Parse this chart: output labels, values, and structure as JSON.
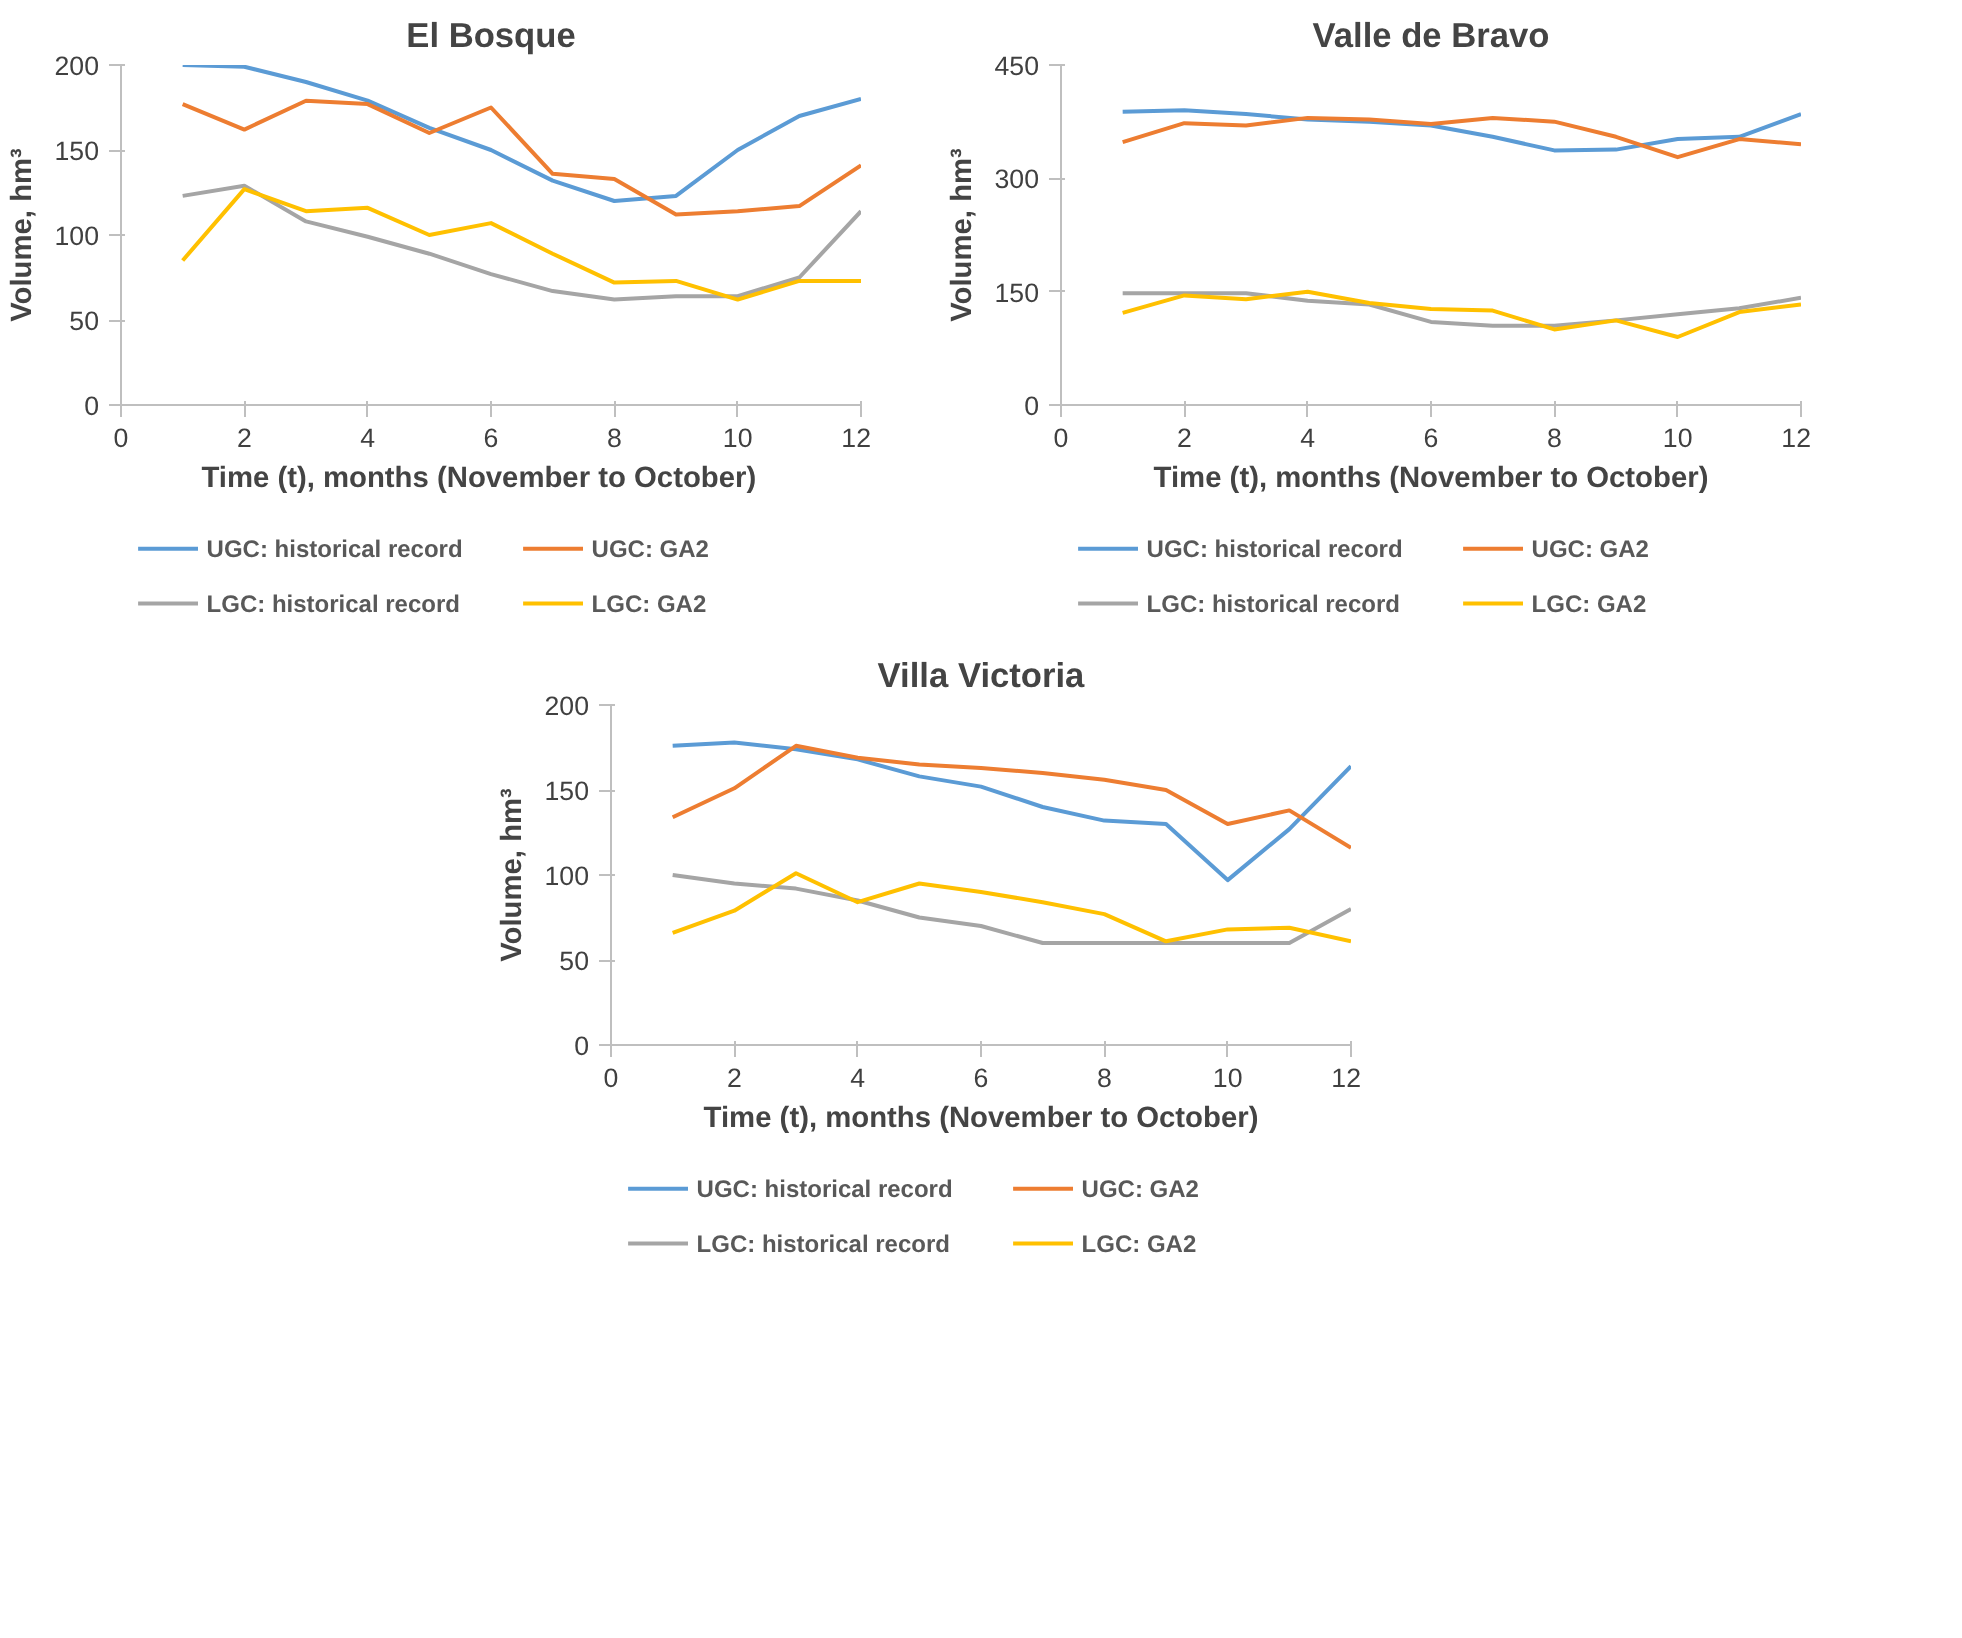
{
  "chart_data": [
    {
      "type": "line",
      "title": "El Bosque",
      "xlabel": "Time (t), months    (November to October)",
      "ylabel": "Volume, hm³",
      "x": [
        1,
        2,
        3,
        4,
        5,
        6,
        7,
        8,
        9,
        10,
        11,
        12
      ],
      "xlim": [
        0,
        12
      ],
      "xticks": [
        0,
        2,
        4,
        6,
        8,
        10,
        12
      ],
      "ylim": [
        0,
        200
      ],
      "yticks": [
        0,
        50,
        100,
        150,
        200
      ],
      "grid": false,
      "legend": "bottom",
      "marker": "none",
      "line_style": "solid",
      "series": [
        {
          "name": "UGC: historical record",
          "color": "#5b9bd5",
          "values": [
            200,
            199,
            190,
            179,
            163,
            150,
            132,
            120,
            123,
            150,
            170,
            180
          ]
        },
        {
          "name": "UGC: GA2",
          "color": "#ed7d31",
          "values": [
            177,
            162,
            179,
            177,
            160,
            175,
            136,
            133,
            112,
            114,
            117,
            141
          ]
        },
        {
          "name": "LGC: historical record",
          "color": "#a5a5a5",
          "values": [
            123,
            129,
            108,
            99,
            89,
            77,
            67,
            62,
            64,
            64,
            75,
            114
          ]
        },
        {
          "name": "LGC: GA2",
          "color": "#ffc000",
          "values": [
            85,
            127,
            114,
            116,
            100,
            107,
            89,
            72,
            73,
            62,
            73,
            73
          ]
        }
      ]
    },
    {
      "type": "line",
      "title": "Valle de Bravo",
      "xlabel": "Time (t), months (November to October)",
      "ylabel": "Volume, hm³",
      "x": [
        1,
        2,
        3,
        4,
        5,
        6,
        7,
        8,
        9,
        10,
        11,
        12
      ],
      "xlim": [
        0,
        12
      ],
      "xticks": [
        0,
        2,
        4,
        6,
        8,
        10,
        12
      ],
      "ylim": [
        0,
        450
      ],
      "yticks": [
        0,
        150,
        300,
        450
      ],
      "grid": false,
      "legend": "bottom",
      "marker": "none",
      "line_style": "solid",
      "series": [
        {
          "name": "UGC: historical record",
          "color": "#5b9bd5",
          "values": [
            388,
            390,
            385,
            378,
            375,
            370,
            355,
            337,
            338,
            352,
            355,
            385
          ]
        },
        {
          "name": "UGC: GA2",
          "color": "#ed7d31",
          "values": [
            348,
            373,
            370,
            380,
            378,
            372,
            380,
            375,
            355,
            328,
            352,
            345
          ]
        },
        {
          "name": "LGC: historical record",
          "color": "#a5a5a5",
          "values": [
            148,
            148,
            148,
            138,
            133,
            110,
            105,
            105,
            112,
            120,
            128,
            142
          ]
        },
        {
          "name": "LGC: GA2",
          "color": "#ffc000",
          "values": [
            122,
            145,
            140,
            150,
            135,
            127,
            125,
            100,
            112,
            90,
            123,
            133
          ]
        }
      ]
    },
    {
      "type": "line",
      "title": "Villa Victoria",
      "xlabel": "Time (t), months (November to October)",
      "ylabel": "Volume, hm³",
      "x": [
        1,
        2,
        3,
        4,
        5,
        6,
        7,
        8,
        9,
        10,
        11,
        12
      ],
      "xlim": [
        0,
        12
      ],
      "xticks": [
        0,
        2,
        4,
        6,
        8,
        10,
        12
      ],
      "ylim": [
        0,
        200
      ],
      "yticks": [
        0,
        50,
        100,
        150,
        200
      ],
      "grid": false,
      "legend": "bottom",
      "marker": "none",
      "line_style": "solid",
      "series": [
        {
          "name": "UGC: historical record",
          "color": "#5b9bd5",
          "values": [
            176,
            178,
            174,
            168,
            158,
            152,
            140,
            132,
            130,
            97,
            127,
            164
          ]
        },
        {
          "name": "UGC: GA2",
          "color": "#ed7d31",
          "values": [
            134,
            151,
            176,
            169,
            165,
            163,
            160,
            156,
            150,
            130,
            138,
            116
          ]
        },
        {
          "name": "LGC: historical record",
          "color": "#a5a5a5",
          "values": [
            100,
            95,
            92,
            85,
            75,
            70,
            60,
            60,
            60,
            60,
            60,
            80
          ]
        },
        {
          "name": "LGC: GA2",
          "color": "#ffc000",
          "values": [
            66,
            79,
            101,
            84,
            95,
            90,
            84,
            77,
            61,
            68,
            69,
            61
          ]
        }
      ]
    }
  ]
}
